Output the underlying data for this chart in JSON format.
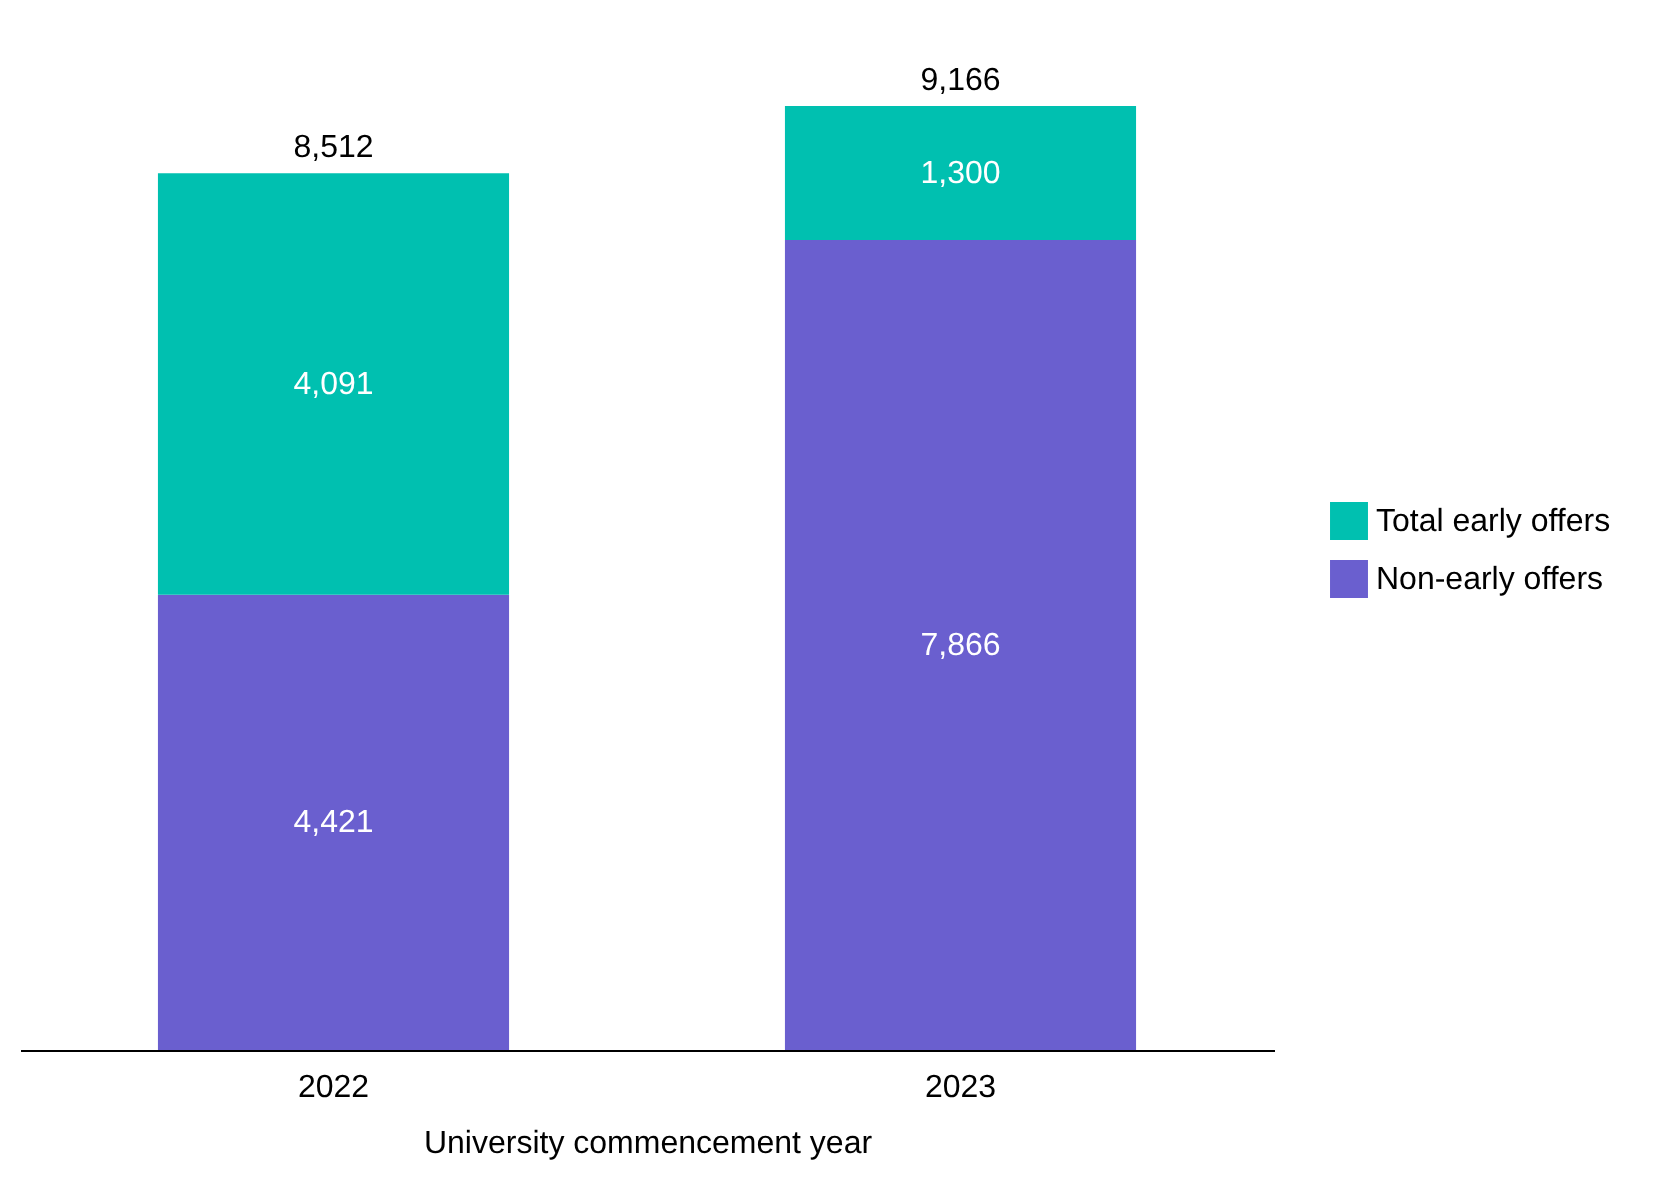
{
  "chart_data": {
    "type": "bar",
    "stacked": true,
    "xlabel": "University commencement year",
    "categories": [
      "2022",
      "2023"
    ],
    "series": [
      {
        "name": "Non-early offers",
        "color": "#6a5fcf",
        "values": [
          4421,
          7866
        ],
        "value_labels": [
          "4,421",
          "7,866"
        ]
      },
      {
        "name": "Total early offers",
        "color": "#00c0b0",
        "values": [
          4091,
          1300
        ],
        "value_labels": [
          "4,091",
          "1,300"
        ]
      }
    ],
    "totals": [
      "8,512",
      "9,166"
    ],
    "legend": "right",
    "grid": false
  }
}
